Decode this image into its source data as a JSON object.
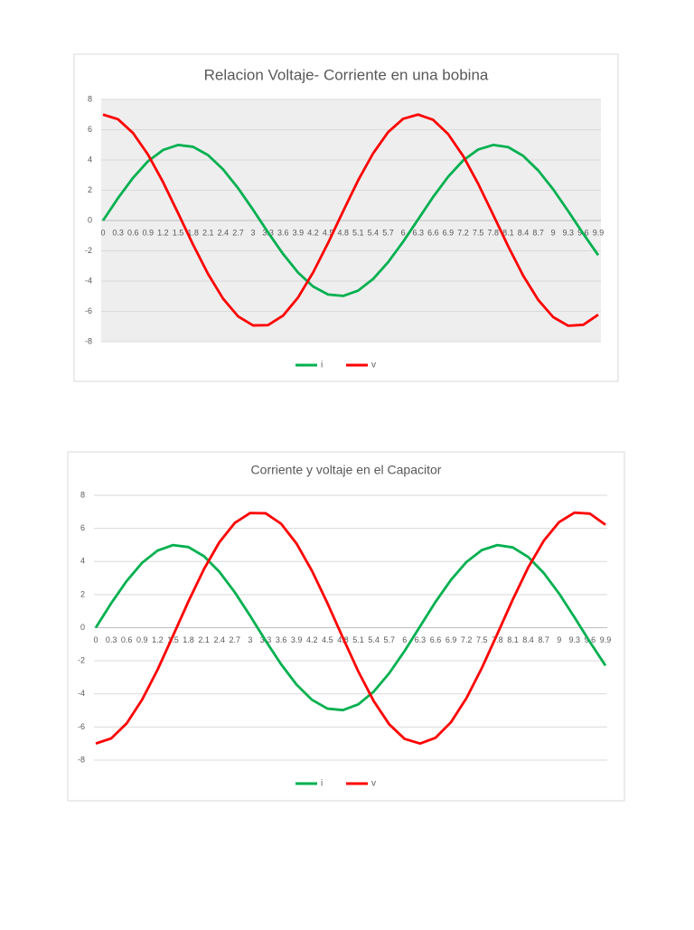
{
  "chart_data": [
    {
      "type": "line",
      "title": "Relacion Voltaje- Corriente en una bobina",
      "categories": [
        "0",
        "0.3",
        "0.6",
        "0.9",
        "1.2",
        "1.5",
        "1.8",
        "2.1",
        "2.4",
        "2.7",
        "3",
        "3.3",
        "3.6",
        "3.9",
        "4.2",
        "4.5",
        "4.8",
        "5.1",
        "5.4",
        "5.7",
        "6",
        "6.3",
        "6.6",
        "6.9",
        "7.2",
        "7.5",
        "7.8",
        "8.1",
        "8.4",
        "8.7",
        "9",
        "9.3",
        "9.6",
        "9.9"
      ],
      "series": [
        {
          "name": "i",
          "color": "#00b050",
          "values": [
            0,
            1.48,
            2.82,
            3.92,
            4.66,
            4.99,
            4.87,
            4.32,
            3.38,
            2.14,
            0.71,
            -0.79,
            -2.21,
            -3.44,
            -4.36,
            -4.89,
            -4.98,
            -4.63,
            -3.86,
            -2.75,
            -1.4,
            0.08,
            1.56,
            2.89,
            3.97,
            4.69,
            4.99,
            4.85,
            4.27,
            3.31,
            2.06,
            0.62,
            -0.87,
            -2.29
          ]
        },
        {
          "name": "v",
          "color": "#ff0000",
          "values": [
            7,
            6.69,
            5.78,
            4.35,
            2.54,
            0.49,
            -1.59,
            -3.53,
            -5.16,
            -6.33,
            -6.93,
            -6.91,
            -6.28,
            -5.08,
            -3.43,
            -1.48,
            0.61,
            2.65,
            4.44,
            5.84,
            6.72,
            7,
            6.65,
            5.71,
            4.26,
            2.43,
            0.38,
            -1.7,
            -3.64,
            -5.24,
            -6.38,
            -6.95,
            -6.89,
            -6.22
          ]
        }
      ],
      "ylim": [
        -8,
        8
      ],
      "yticks": [
        -8,
        -6,
        -4,
        -2,
        0,
        2,
        4,
        6,
        8
      ],
      "grid": true,
      "legend": "bottom"
    },
    {
      "type": "line",
      "title": "Corriente y voltaje en el Capacitor",
      "categories": [
        "0",
        "0.3",
        "0.6",
        "0.9",
        "1.2",
        "1.5",
        "1.8",
        "2.1",
        "2.4",
        "2.7",
        "3",
        "3.3",
        "3.6",
        "3.9",
        "4.2",
        "4.5",
        "4.8",
        "5.1",
        "5.4",
        "5.7",
        "6",
        "6.3",
        "6.6",
        "6.9",
        "7.2",
        "7.5",
        "7.8",
        "8.1",
        "8.4",
        "8.7",
        "9",
        "9.3",
        "9.6",
        "9.9"
      ],
      "series": [
        {
          "name": "i",
          "color": "#00b050",
          "values": [
            0,
            1.48,
            2.82,
            3.92,
            4.66,
            4.99,
            4.87,
            4.32,
            3.38,
            2.14,
            0.71,
            -0.79,
            -2.21,
            -3.44,
            -4.36,
            -4.89,
            -4.98,
            -4.63,
            -3.86,
            -2.75,
            -1.4,
            0.08,
            1.56,
            2.89,
            3.97,
            4.69,
            4.99,
            4.85,
            4.27,
            3.31,
            2.06,
            0.62,
            -0.87,
            -2.29
          ]
        },
        {
          "name": "v",
          "color": "#ff0000",
          "values": [
            -7,
            -6.69,
            -5.78,
            -4.35,
            -2.54,
            -0.49,
            1.59,
            3.53,
            5.16,
            6.33,
            6.93,
            6.91,
            6.28,
            5.08,
            3.43,
            1.48,
            -0.61,
            -2.65,
            -4.44,
            -5.84,
            -6.72,
            -7,
            -6.65,
            -5.71,
            -4.26,
            -2.43,
            -0.38,
            1.7,
            3.64,
            5.24,
            6.38,
            6.95,
            6.89,
            6.22
          ]
        }
      ],
      "ylim": [
        -8,
        8
      ],
      "yticks": [
        -8,
        -6,
        -4,
        -2,
        0,
        2,
        4,
        6,
        8
      ],
      "grid": true,
      "legend": "bottom"
    }
  ]
}
